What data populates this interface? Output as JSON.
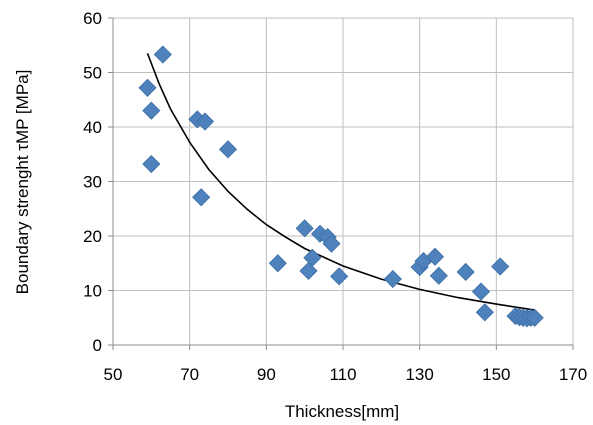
{
  "chart_data": {
    "type": "scatter",
    "title": "",
    "xlabel": "Thickness[mm]",
    "ylabel": "Boundary strenght τMP [MPa]",
    "xlim": [
      50,
      170
    ],
    "ylim": [
      0,
      60
    ],
    "xticks": [
      50,
      70,
      90,
      110,
      130,
      150,
      170
    ],
    "yticks": [
      0,
      10,
      20,
      30,
      40,
      50,
      60
    ],
    "grid": true,
    "legend": "none",
    "series": [
      {
        "marker": "diamond",
        "color": "#4F81BD",
        "points": [
          [
            59,
            47.2
          ],
          [
            60,
            43.0
          ],
          [
            60,
            33.2
          ],
          [
            63,
            53.3
          ],
          [
            72,
            41.4
          ],
          [
            73,
            27.1
          ],
          [
            74,
            41.0
          ],
          [
            80,
            35.9
          ],
          [
            93,
            15.0
          ],
          [
            100,
            21.4
          ],
          [
            101,
            13.6
          ],
          [
            102,
            16.0
          ],
          [
            104,
            20.4
          ],
          [
            106,
            19.8
          ],
          [
            107,
            18.6
          ],
          [
            109,
            12.6
          ],
          [
            123,
            12.1
          ],
          [
            130,
            14.3
          ],
          [
            131,
            15.4
          ],
          [
            134,
            16.2
          ],
          [
            135,
            12.7
          ],
          [
            142,
            13.4
          ],
          [
            146,
            9.8
          ],
          [
            147,
            6.0
          ],
          [
            151,
            14.4
          ],
          [
            155,
            5.3
          ],
          [
            156,
            5.1
          ],
          [
            157,
            5.0
          ],
          [
            158,
            4.9
          ],
          [
            159,
            5.0
          ],
          [
            160,
            5.0
          ]
        ]
      }
    ],
    "trendline": {
      "type": "power",
      "color": "#000000",
      "x_range": [
        59,
        160
      ],
      "points": [
        [
          59,
          53.5
        ],
        [
          62,
          48.0
        ],
        [
          65,
          43.3
        ],
        [
          70,
          37.2
        ],
        [
          75,
          32.2
        ],
        [
          80,
          28.2
        ],
        [
          85,
          24.9
        ],
        [
          90,
          22.1
        ],
        [
          95,
          19.8
        ],
        [
          100,
          17.7
        ],
        [
          110,
          14.5
        ],
        [
          120,
          12.1
        ],
        [
          130,
          10.2
        ],
        [
          140,
          8.7
        ],
        [
          150,
          7.5
        ],
        [
          160,
          6.4
        ]
      ]
    }
  }
}
